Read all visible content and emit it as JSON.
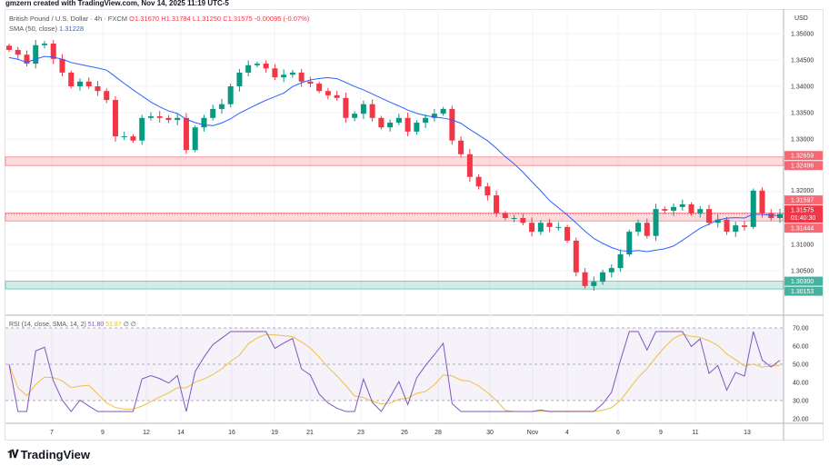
{
  "credit": "gmzern created with TradingView.com, Nov 14, 2025 11:19 UTC-5",
  "legend": {
    "symbol": "British Pound / U.S. Dollar · 4h · FXCM",
    "o": "O1.31670",
    "h": "H1.31784",
    "l": "L1.31250",
    "c": "C1.31575",
    "change": "-0.00095 (-0.07%)",
    "sma_label": "SMA (50, close)",
    "sma_value": "1.31228"
  },
  "rsi_legend": {
    "label": "RSI (14, close, SMA, 14, 2)",
    "rsi": "51.80",
    "rsi_sma": "51.87",
    "extra": "∅ ∅"
  },
  "currency": "USD",
  "logo": "TradingView",
  "colors": {
    "up": "#089981",
    "down": "#f23645",
    "sma": "#2962ff",
    "rsi": "#7e57c2",
    "rsi_sma": "#f0c040",
    "zone_red": "#f23645",
    "zone_green": "#089981"
  },
  "chart_data": {
    "type": "candlestick",
    "price_ticks": [
      "1.35000",
      "1.34500",
      "1.34000",
      "1.33500",
      "1.33000",
      "1.32000",
      "1.31000",
      "1.30500"
    ],
    "ylim": [
      1.2995,
      1.3518
    ],
    "x_ticks": [
      "7",
      "9",
      "12",
      "14",
      "16",
      "19",
      "21",
      "23",
      "26",
      "28",
      "30",
      "Nov",
      "4",
      "6",
      "9",
      "11",
      "13"
    ],
    "closes": [
      1.3469,
      1.346,
      1.3443,
      1.3478,
      1.3481,
      1.3452,
      1.3426,
      1.34,
      1.3409,
      1.34,
      1.3391,
      1.3374,
      1.3305,
      1.3305,
      1.3297,
      1.334,
      1.3343,
      1.334,
      1.3336,
      1.334,
      1.3279,
      1.3322,
      1.334,
      1.3357,
      1.3366,
      1.34,
      1.3426,
      1.344,
      1.3443,
      1.3434,
      1.3417,
      1.3422,
      1.3426,
      1.3409,
      1.3405,
      1.3391,
      1.3383,
      1.3378,
      1.334,
      1.3348,
      1.3366,
      1.334,
      1.3322,
      1.3331,
      1.334,
      1.3314,
      1.3331,
      1.334,
      1.3348,
      1.3357,
      1.3297,
      1.3271,
      1.3228,
      1.321,
      1.3193,
      1.3159,
      1.315,
      1.315,
      1.3141,
      1.3124,
      1.3141,
      1.3133,
      1.3133,
      1.3107,
      1.3047,
      1.3021,
      1.3029,
      1.3047,
      1.3055,
      1.3081,
      1.3124,
      1.3141,
      1.3116,
      1.3167,
      1.3164,
      1.3171,
      1.3176,
      1.3159,
      1.3167,
      1.3141,
      1.3147,
      1.3124,
      1.3136,
      1.3133,
      1.3202,
      1.3159,
      1.315,
      1.31575
    ],
    "zones": [
      {
        "label_top": "1.32659",
        "label_bottom": "1.32496",
        "top": 1.32659,
        "bottom": 1.32496,
        "color": "red"
      },
      {
        "label_top": "1.31597",
        "label_bottom": "1.31444",
        "top": 1.31597,
        "bottom": 1.31444,
        "color": "red"
      },
      {
        "label_top": "1.30300",
        "label_bottom": "1.30153",
        "top": 1.303,
        "bottom": 1.30153,
        "color": "green"
      }
    ],
    "last_price": {
      "value": 1.31575,
      "label": "1.31575",
      "countdown": "01:40:30"
    },
    "rsi_ticks": [
      "70.00",
      "60.00",
      "50.00",
      "40.00",
      "30.00",
      "20.00"
    ],
    "rsi_band": [
      30,
      70
    ]
  }
}
